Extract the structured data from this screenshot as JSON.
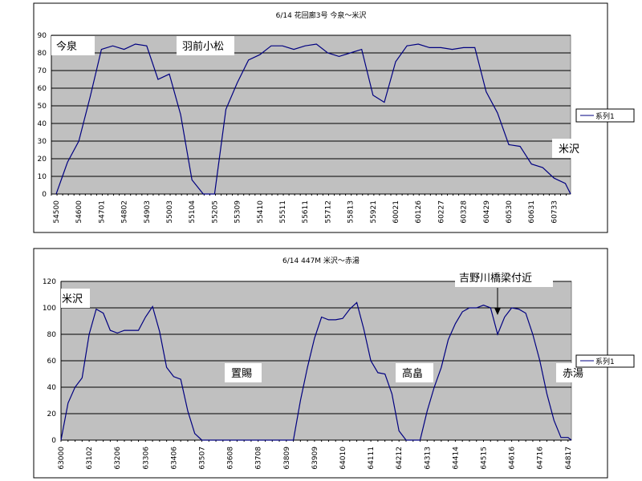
{
  "chart_data": [
    {
      "type": "line",
      "title": "6/14 花回廊3号 今泉〜米沢",
      "xlabel": "",
      "ylabel": "",
      "ylim": [
        0,
        90
      ],
      "yticks": [
        0,
        10,
        20,
        30,
        40,
        50,
        60,
        70,
        80,
        90
      ],
      "grid": true,
      "legend": "right",
      "line_color": "#000080",
      "plot_bg": "#C0C0C0",
      "x_tick_labels": [
        "54500",
        "54600",
        "54701",
        "54802",
        "54903",
        "55003",
        "55104",
        "55205",
        "55309",
        "55410",
        "55511",
        "55611",
        "55712",
        "55813",
        "55921",
        "60021",
        "60126",
        "60227",
        "60328",
        "60429",
        "60530",
        "60631",
        "60733"
      ],
      "samples_per_tick": 2,
      "series": [
        {
          "name": "系列1",
          "values": [
            0,
            18,
            30,
            55,
            82,
            84,
            82,
            85,
            84,
            65,
            68,
            45,
            8,
            0,
            0,
            48,
            63,
            76,
            79,
            84,
            84,
            82,
            84,
            85,
            80,
            78,
            80,
            82,
            56,
            52,
            75,
            84,
            85,
            83,
            83,
            82,
            83,
            83,
            58,
            46,
            28,
            27,
            17,
            15,
            9,
            6,
            0
          ]
        }
      ],
      "annotations": [
        {
          "text": "今泉"
        },
        {
          "text": "羽前小松"
        },
        {
          "text": "米沢"
        }
      ]
    },
    {
      "type": "line",
      "title": "6/14 447M 米沢〜赤湯",
      "xlabel": "",
      "ylabel": "",
      "ylim": [
        0,
        120
      ],
      "yticks": [
        0,
        20,
        40,
        60,
        80,
        100,
        120
      ],
      "grid": true,
      "legend": "right",
      "line_color": "#000080",
      "plot_bg": "#C0C0C0",
      "x_tick_labels": [
        "63000",
        "63102",
        "63206",
        "63306",
        "63406",
        "63507",
        "63608",
        "63708",
        "63809",
        "63909",
        "64010",
        "64111",
        "64212",
        "64313",
        "64414",
        "64515",
        "64616",
        "64716",
        "64817"
      ],
      "samples_per_tick": 4,
      "series": [
        {
          "name": "系列1",
          "values": [
            0,
            28,
            40,
            47,
            80,
            99,
            96,
            83,
            81,
            83,
            83,
            83,
            93,
            101,
            82,
            55,
            48,
            46,
            22,
            5,
            0,
            0,
            0,
            0,
            0,
            0,
            0,
            0,
            0,
            0,
            0,
            0,
            0,
            0,
            30,
            55,
            77,
            93,
            91,
            91,
            92,
            99,
            104,
            84,
            60,
            51,
            50,
            35,
            7,
            0,
            0,
            0,
            22,
            40,
            55,
            76,
            88,
            97,
            100,
            100,
            102,
            100,
            80,
            93,
            100,
            99,
            96,
            80,
            60,
            35,
            15,
            2,
            2,
            0
          ]
        }
      ],
      "annotations": [
        {
          "text": "米沢"
        },
        {
          "text": "置賜"
        },
        {
          "text": "高畠"
        },
        {
          "text": "赤湯"
        },
        {
          "text": "吉野川橋梁付近"
        }
      ]
    }
  ]
}
